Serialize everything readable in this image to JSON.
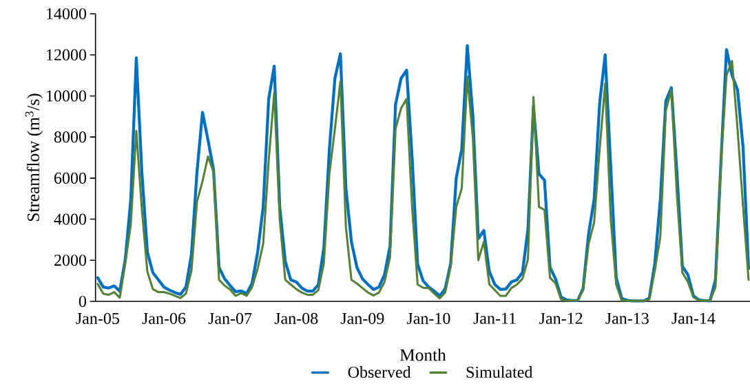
{
  "chart_data": {
    "type": "line",
    "xlabel": "Month",
    "ylabel": "Streamflow (m$^{3}$/s)",
    "categories": [
      "Jan-05",
      null,
      null,
      null,
      null,
      null,
      null,
      null,
      null,
      null,
      null,
      null,
      "Jan-06",
      null,
      null,
      null,
      null,
      null,
      null,
      null,
      null,
      null,
      null,
      null,
      "Jan-07",
      null,
      null,
      null,
      null,
      null,
      null,
      null,
      null,
      null,
      null,
      null,
      "Jan-08",
      null,
      null,
      null,
      null,
      null,
      null,
      null,
      null,
      null,
      null,
      null,
      "Jan-09",
      null,
      null,
      null,
      null,
      null,
      null,
      null,
      null,
      null,
      null,
      null,
      "Jan-10",
      null,
      null,
      null,
      null,
      null,
      null,
      null,
      null,
      null,
      null,
      null,
      "Jan-11",
      null,
      null,
      null,
      null,
      null,
      null,
      null,
      null,
      null,
      null,
      null,
      "Jan-12",
      null,
      null,
      null,
      null,
      null,
      null,
      null,
      null,
      null,
      null,
      null,
      "Jan-13",
      null,
      null,
      null,
      null,
      null,
      null,
      null,
      null,
      null,
      null,
      null,
      "Jan-14",
      null,
      null,
      null,
      null,
      null,
      null,
      null,
      null,
      null,
      null
    ],
    "series": [
      {
        "name": "Observed",
        "color": "#0070c0",
        "values": [
          1150,
          700,
          650,
          750,
          500,
          2050,
          4950,
          11850,
          6300,
          2400,
          1400,
          1050,
          700,
          550,
          430,
          340,
          700,
          2300,
          6300,
          9200,
          7850,
          6400,
          1650,
          1100,
          770,
          470,
          510,
          380,
          900,
          2400,
          4600,
          9850,
          11450,
          4600,
          1950,
          1050,
          950,
          650,
          500,
          500,
          820,
          2600,
          7400,
          10850,
          12050,
          5500,
          2900,
          1650,
          1100,
          820,
          580,
          700,
          1300,
          2700,
          9600,
          10850,
          11250,
          7000,
          1800,
          1000,
          700,
          500,
          270,
          620,
          1850,
          6000,
          7400,
          12450,
          9100,
          3050,
          3450,
          1450,
          820,
          580,
          600,
          950,
          1050,
          1400,
          3500,
          9500,
          6200,
          5900,
          1650,
          1100,
          210,
          70,
          40,
          40,
          620,
          3300,
          4950,
          9650,
          12000,
          6600,
          1150,
          150,
          50,
          20,
          20,
          20,
          150,
          1850,
          4950,
          9750,
          10400,
          6300,
          1700,
          1300,
          270,
          70,
          40,
          20,
          1050,
          6850,
          12250,
          11000,
          10300,
          7500,
          1600
        ]
      },
      {
        "name": "Simulated",
        "color": "#548235",
        "values": [
          850,
          380,
          320,
          450,
          180,
          1850,
          3750,
          8300,
          4500,
          1450,
          600,
          450,
          450,
          380,
          270,
          160,
          380,
          1500,
          4850,
          5850,
          7050,
          6300,
          1050,
          770,
          580,
          270,
          400,
          270,
          700,
          1600,
          2800,
          6850,
          10150,
          4000,
          1050,
          820,
          600,
          430,
          320,
          320,
          550,
          1850,
          6200,
          8400,
          10700,
          3600,
          1050,
          870,
          650,
          430,
          290,
          430,
          950,
          2150,
          8400,
          9400,
          9850,
          4600,
          820,
          660,
          650,
          380,
          150,
          430,
          1700,
          4600,
          5500,
          10950,
          8000,
          2000,
          2900,
          830,
          550,
          270,
          270,
          650,
          820,
          1100,
          2050,
          9950,
          4600,
          4450,
          1150,
          880,
          100,
          40,
          40,
          40,
          550,
          2800,
          3850,
          7400,
          10600,
          4050,
          820,
          40,
          40,
          20,
          20,
          20,
          100,
          1500,
          3150,
          9300,
          10300,
          5200,
          1400,
          950,
          200,
          40,
          40,
          20,
          700,
          6850,
          11000,
          11700,
          8400,
          4600,
          1050
        ]
      }
    ],
    "ylim": [
      0,
      14000
    ],
    "yticks": [
      0,
      2000,
      4000,
      6000,
      8000,
      10000,
      12000,
      14000
    ],
    "legend": "bottom",
    "line_style": "solid",
    "marker": "none",
    "grid": false
  }
}
